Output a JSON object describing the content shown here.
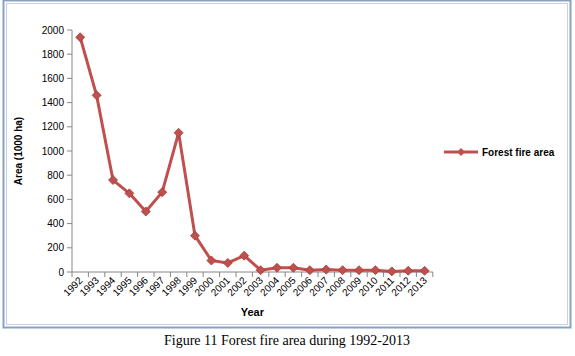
{
  "chart_data": {
    "type": "line",
    "caption": "Figure 11 Forest fire area during 1992-2013",
    "x_label": "Year",
    "y_label": "Area (1000 ha)",
    "categories": [
      "1992",
      "1993",
      "1994",
      "1995",
      "1996",
      "1997",
      "1998",
      "1999",
      "2000",
      "2001",
      "2002",
      "2003",
      "2004",
      "2005",
      "2006",
      "2007",
      "2008",
      "2009",
      "2010",
      "2011",
      "2012",
      "2013"
    ],
    "series": [
      {
        "name": "Forest fire area",
        "color": "#c0504d",
        "marker": "diamond",
        "values": [
          1940,
          1460,
          760,
          650,
          500,
          660,
          1150,
          300,
          95,
          75,
          135,
          15,
          35,
          35,
          15,
          20,
          15,
          15,
          15,
          5,
          10,
          10
        ]
      }
    ],
    "ylim": [
      0,
      2000
    ],
    "yticks": [
      0,
      200,
      400,
      600,
      800,
      1000,
      1200,
      1400,
      1600,
      1800,
      2000
    ],
    "grid": false,
    "legend": "right"
  }
}
